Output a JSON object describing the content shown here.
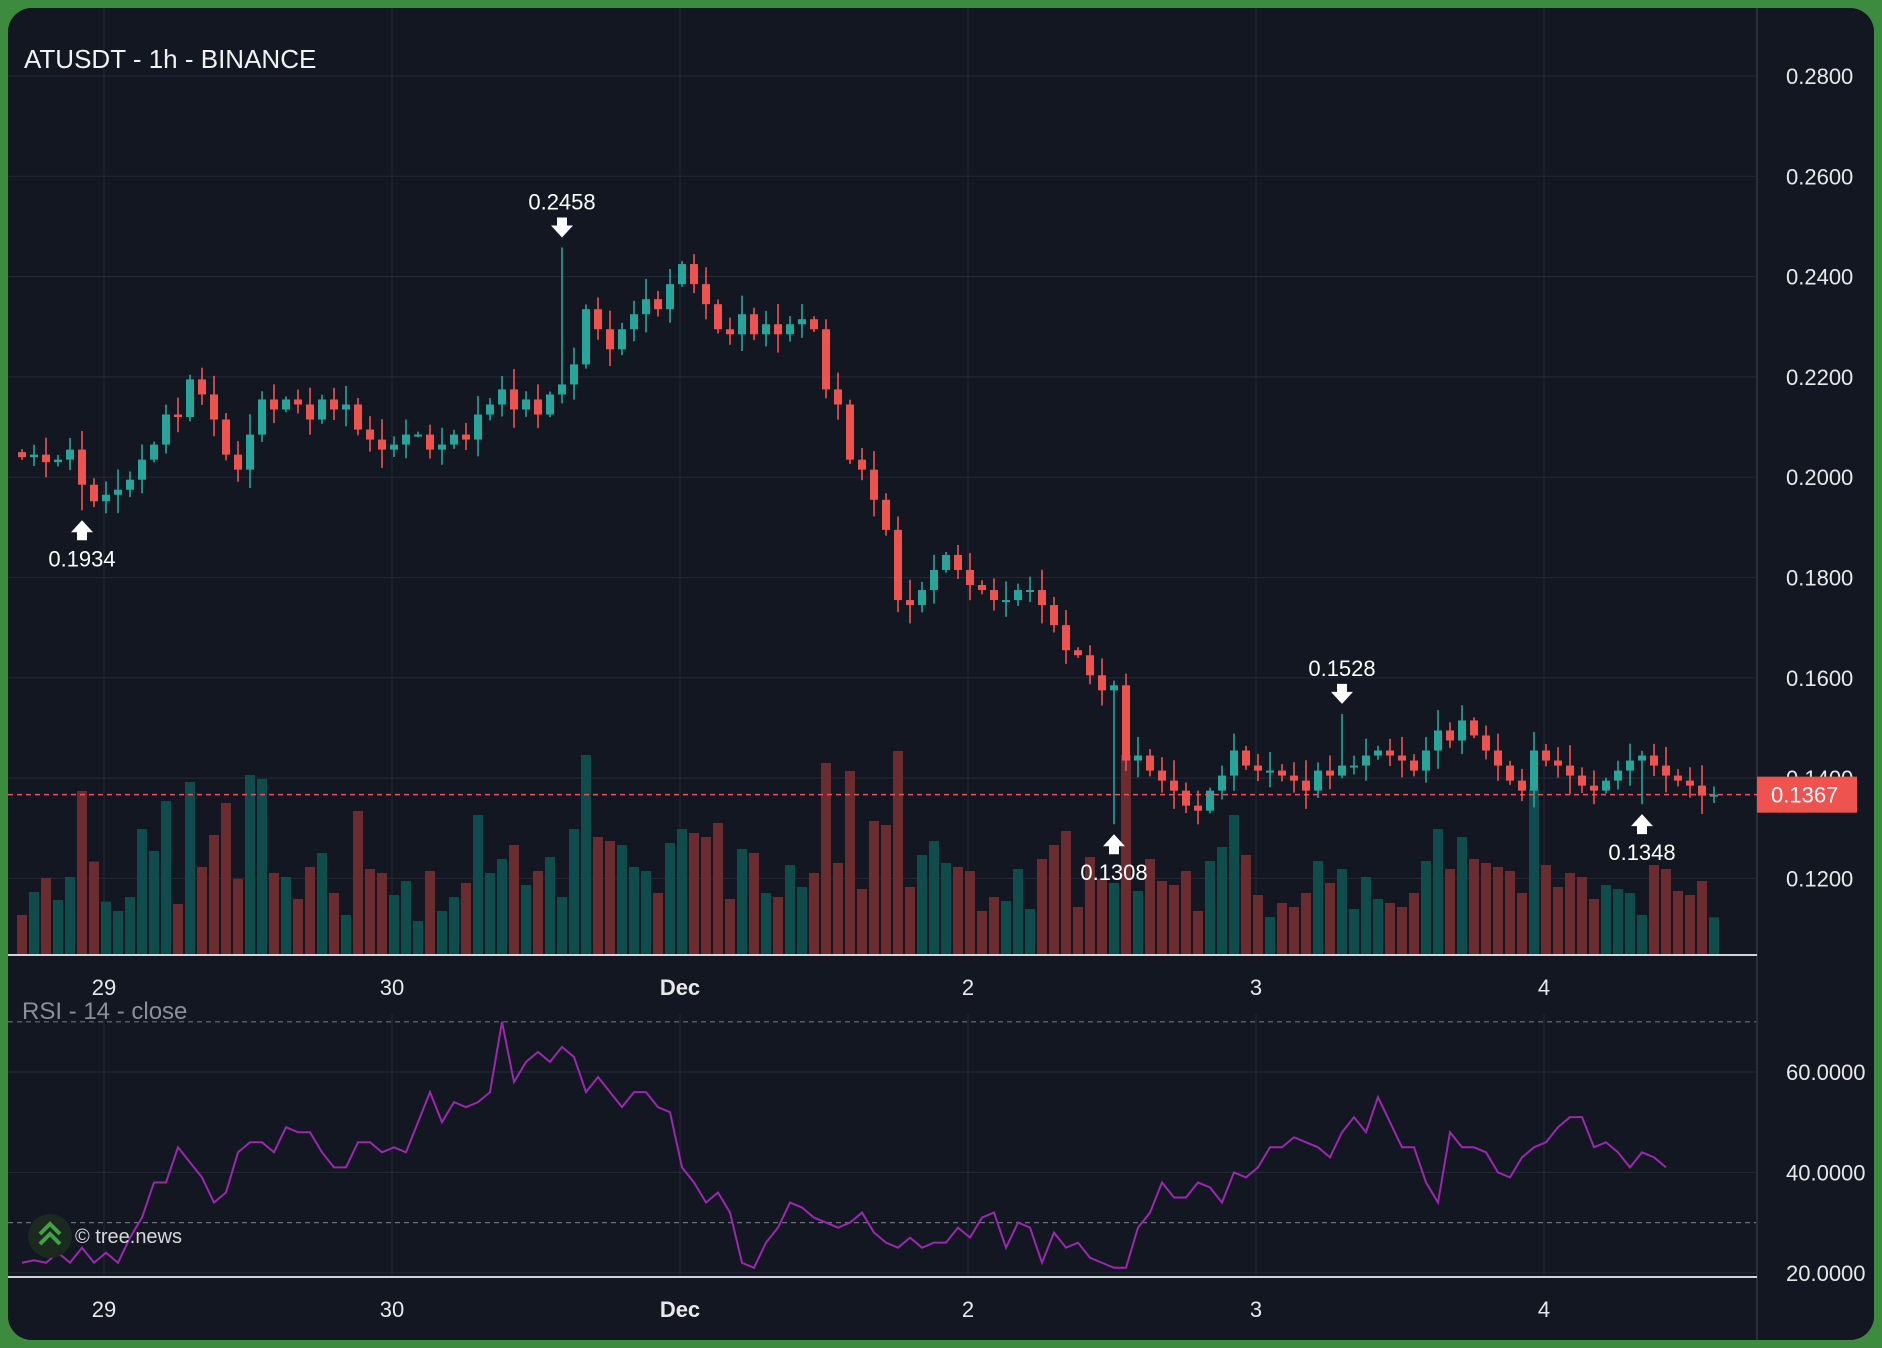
{
  "title": "ATUSDT - 1h - BINANCE",
  "rsi_label": "RSI - 14 - close",
  "watermark": "© tree.news",
  "price_label": "0.1367",
  "colors": {
    "up": "#26a69a",
    "down": "#ef5350",
    "rsi": "#9c27b0",
    "frame": "#3d8b3f",
    "background": "#131722"
  },
  "chart_data": [
    {
      "type": "candlestick",
      "title": "ATUSDT - 1h - BINANCE",
      "x_ticks": [
        "29",
        "30",
        "Dec",
        "2",
        "3",
        "4"
      ],
      "y_ticks": [
        "0.2800",
        "0.2600",
        "0.2400",
        "0.2200",
        "0.2000",
        "0.1800",
        "0.1600",
        "0.1400",
        "0.1200"
      ],
      "ylim": [
        0.1,
        0.29
      ],
      "last_price": 0.1367,
      "annotations": [
        {
          "label": "0.2458",
          "kind": "high",
          "index": 45,
          "value": 0.2458
        },
        {
          "label": "0.1934",
          "kind": "low",
          "index": 5,
          "value": 0.1934
        },
        {
          "label": "0.1528",
          "kind": "high",
          "index": 110,
          "value": 0.1528
        },
        {
          "label": "0.1308",
          "kind": "low",
          "index": 91,
          "value": 0.1308
        },
        {
          "label": "0.1348",
          "kind": "low",
          "index": 135,
          "value": 0.1348
        }
      ],
      "closes": [
        0.204,
        0.2045,
        0.203,
        0.2035,
        0.2055,
        0.1985,
        0.1952,
        0.1965,
        0.1975,
        0.1995,
        0.2035,
        0.2065,
        0.2125,
        0.212,
        0.2195,
        0.2165,
        0.2115,
        0.2045,
        0.2015,
        0.2085,
        0.2155,
        0.2135,
        0.2155,
        0.2145,
        0.2115,
        0.2155,
        0.2135,
        0.2145,
        0.2095,
        0.2075,
        0.2055,
        0.2065,
        0.2085,
        0.2085,
        0.2055,
        0.2065,
        0.2085,
        0.2075,
        0.2125,
        0.2145,
        0.2175,
        0.2135,
        0.2155,
        0.2125,
        0.2165,
        0.2185,
        0.2225,
        0.2335,
        0.2295,
        0.2255,
        0.2295,
        0.2325,
        0.2355,
        0.2335,
        0.2385,
        0.2425,
        0.2385,
        0.2345,
        0.2295,
        0.2285,
        0.2325,
        0.2285,
        0.2305,
        0.2285,
        0.2305,
        0.2315,
        0.2295,
        0.2175,
        0.2145,
        0.2035,
        0.2015,
        0.1955,
        0.1895,
        0.1755,
        0.1745,
        0.1775,
        0.1815,
        0.1845,
        0.1815,
        0.1785,
        0.1775,
        0.1755,
        0.1755,
        0.1775,
        0.1775,
        0.1745,
        0.1705,
        0.1655,
        0.1645,
        0.1605,
        0.1575,
        0.1585,
        0.1435,
        0.1445,
        0.1415,
        0.1395,
        0.1375,
        0.1345,
        0.1335,
        0.1375,
        0.1405,
        0.1455,
        0.1425,
        0.1415,
        0.1415,
        0.1405,
        0.1395,
        0.1375,
        0.1415,
        0.1405,
        0.1425,
        0.1425,
        0.1445,
        0.1455,
        0.1445,
        0.1435,
        0.1415,
        0.1455,
        0.1495,
        0.1475,
        0.1515,
        0.1485,
        0.1455,
        0.1425,
        0.1395,
        0.1375,
        0.1455,
        0.1435,
        0.1425,
        0.1405,
        0.1385,
        0.1375,
        0.1395,
        0.1415,
        0.1435,
        0.1445,
        0.1425,
        0.1405,
        0.1395,
        0.1385,
        0.1365,
        0.1367
      ]
    },
    {
      "type": "bar",
      "name": "volume"
    },
    {
      "type": "line",
      "title": "RSI - 14 - close",
      "y_ticks": [
        "60.0000",
        "40.0000",
        "20.0000"
      ],
      "ylim": [
        15.5,
        75
      ],
      "bands": [
        70,
        30
      ],
      "x_ticks": [
        "29",
        "30",
        "Dec",
        "2",
        "3",
        "4"
      ],
      "values": [
        22,
        22.5,
        22,
        24,
        22,
        25,
        22,
        24,
        22,
        27,
        31,
        38,
        38,
        45,
        42,
        39,
        34,
        36,
        44,
        46,
        46,
        44,
        49,
        48,
        48,
        44,
        41,
        41,
        46,
        46,
        44,
        45,
        44,
        50,
        56,
        50,
        54,
        53,
        54,
        56,
        70,
        58,
        62,
        64,
        62,
        65,
        63,
        56,
        59,
        56,
        53,
        56,
        56,
        53,
        52,
        41,
        38,
        34,
        36,
        32,
        22,
        21,
        26,
        29,
        34,
        33,
        31,
        30,
        29,
        30,
        32,
        28,
        26,
        25,
        27,
        25,
        26,
        26,
        29,
        27,
        31,
        32,
        25,
        30,
        29,
        22,
        28,
        25,
        26,
        23,
        22,
        21,
        21,
        29,
        32,
        38,
        35,
        35,
        38,
        37,
        34,
        40,
        39,
        41,
        45,
        45,
        47,
        46,
        45,
        43,
        48,
        51,
        48,
        55,
        50,
        45,
        45,
        38,
        34,
        48,
        45,
        45,
        44,
        40,
        39,
        43,
        45,
        46,
        49,
        51,
        51,
        45,
        46,
        44,
        41,
        44,
        43,
        41
      ]
    }
  ]
}
